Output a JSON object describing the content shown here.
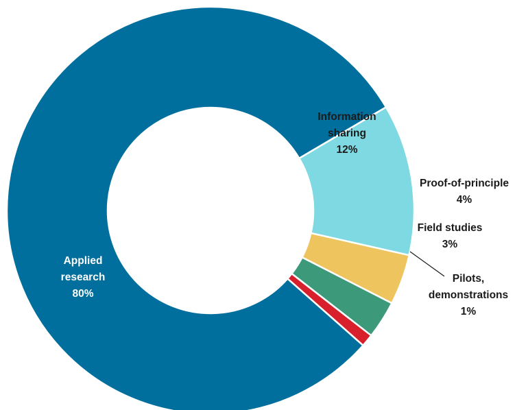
{
  "chart_data": {
    "type": "pie",
    "variant": "donut",
    "slices": [
      {
        "label": [
          "Information",
          "sharing"
        ],
        "percent_label": "12%",
        "value": 12,
        "color": "#7ED9E2",
        "label_color": "#1a1a1a"
      },
      {
        "label": [
          "Proof-of-principle"
        ],
        "percent_label": "4%",
        "value": 4,
        "color": "#EEC45E",
        "label_color": "#1a1a1a"
      },
      {
        "label": [
          "Field studies"
        ],
        "percent_label": "3%",
        "value": 3,
        "color": "#3C9A7B",
        "label_color": "#1a1a1a"
      },
      {
        "label": [
          "Pilots,",
          "demonstrations"
        ],
        "percent_label": "1%",
        "value": 1,
        "color": "#D81F2C",
        "label_color": "#1a1a1a"
      },
      {
        "label": [
          "Applied",
          "research"
        ],
        "percent_label": "80%",
        "value": 80,
        "color": "#006F9D",
        "label_color": "#ffffff"
      }
    ],
    "legend": "none"
  }
}
